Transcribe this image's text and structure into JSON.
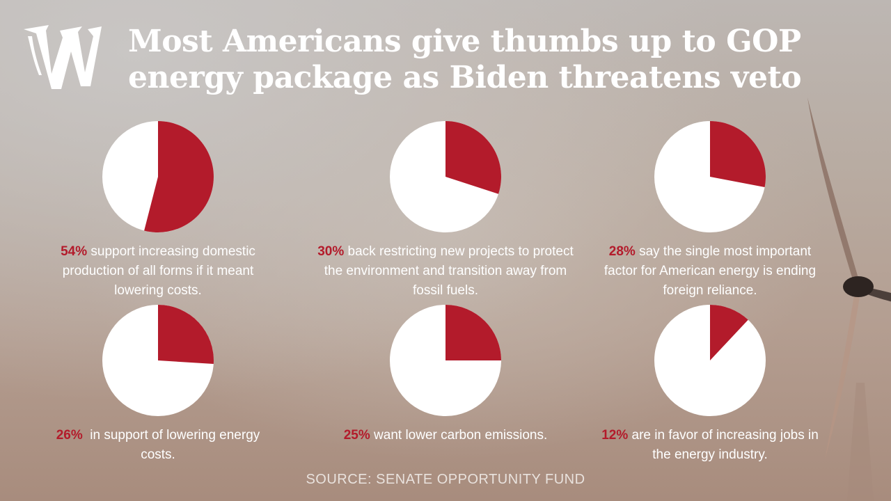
{
  "header": {
    "title": "Most Americans give thumbs up to GOP energy package as Biden threatens veto",
    "logo_icon": "washington-times-w-logo"
  },
  "colors": {
    "slice": "#b31b2b",
    "pie_base": "#ffffff",
    "text": "#ffffff"
  },
  "chart_data": [
    {
      "type": "pie",
      "value": 54,
      "pct_label": "54%",
      "caption": " support increasing domestic production of all forms if it meant lowering costs."
    },
    {
      "type": "pie",
      "value": 30,
      "pct_label": "30%",
      "caption": " back restricting new projects to protect the environment and transition away from fossil fuels."
    },
    {
      "type": "pie",
      "value": 28,
      "pct_label": "28%",
      "caption": " say the single most important factor for American energy is ending foreign reliance."
    },
    {
      "type": "pie",
      "value": 26,
      "pct_label": "26%",
      "caption": "  in support of lowering energy costs."
    },
    {
      "type": "pie",
      "value": 25,
      "pct_label": "25%",
      "caption": " want lower carbon emissions."
    },
    {
      "type": "pie",
      "value": 12,
      "pct_label": "12%",
      "caption": " are in favor of increasing jobs in the energy industry."
    }
  ],
  "source": "SOURCE: SENATE OPPORTUNITY FUND"
}
